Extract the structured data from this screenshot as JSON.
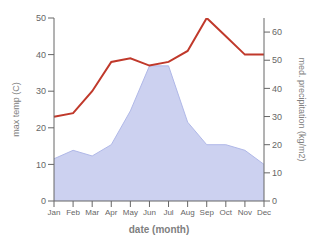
{
  "chart_data": {
    "type": "line",
    "categories": [
      "Jan",
      "Feb",
      "Mar",
      "Apr",
      "May",
      "Jun",
      "Jul",
      "Aug",
      "Sep",
      "Oct",
      "Nov",
      "Dec"
    ],
    "xlabel": "date (month)",
    "ylabel": "max temp (C)",
    "y2label": "med. precipitation (kg/m2)",
    "ylim": [
      0,
      50
    ],
    "yticks": [
      0,
      10,
      20,
      30,
      40,
      50
    ],
    "y2lim": [
      0,
      65
    ],
    "y2ticks": [
      0,
      10,
      20,
      30,
      40,
      50,
      60
    ],
    "series": [
      {
        "type": "line",
        "color": "#c0392b",
        "values": [
          23,
          24,
          30,
          38,
          39,
          37,
          38,
          41,
          50,
          45,
          40,
          40
        ]
      },
      {
        "type": "area",
        "axis": "y2",
        "color": "#b0b8e8",
        "values": [
          15,
          18,
          16,
          20,
          32,
          48,
          48,
          28,
          20,
          20,
          18,
          13
        ]
      }
    ]
  }
}
